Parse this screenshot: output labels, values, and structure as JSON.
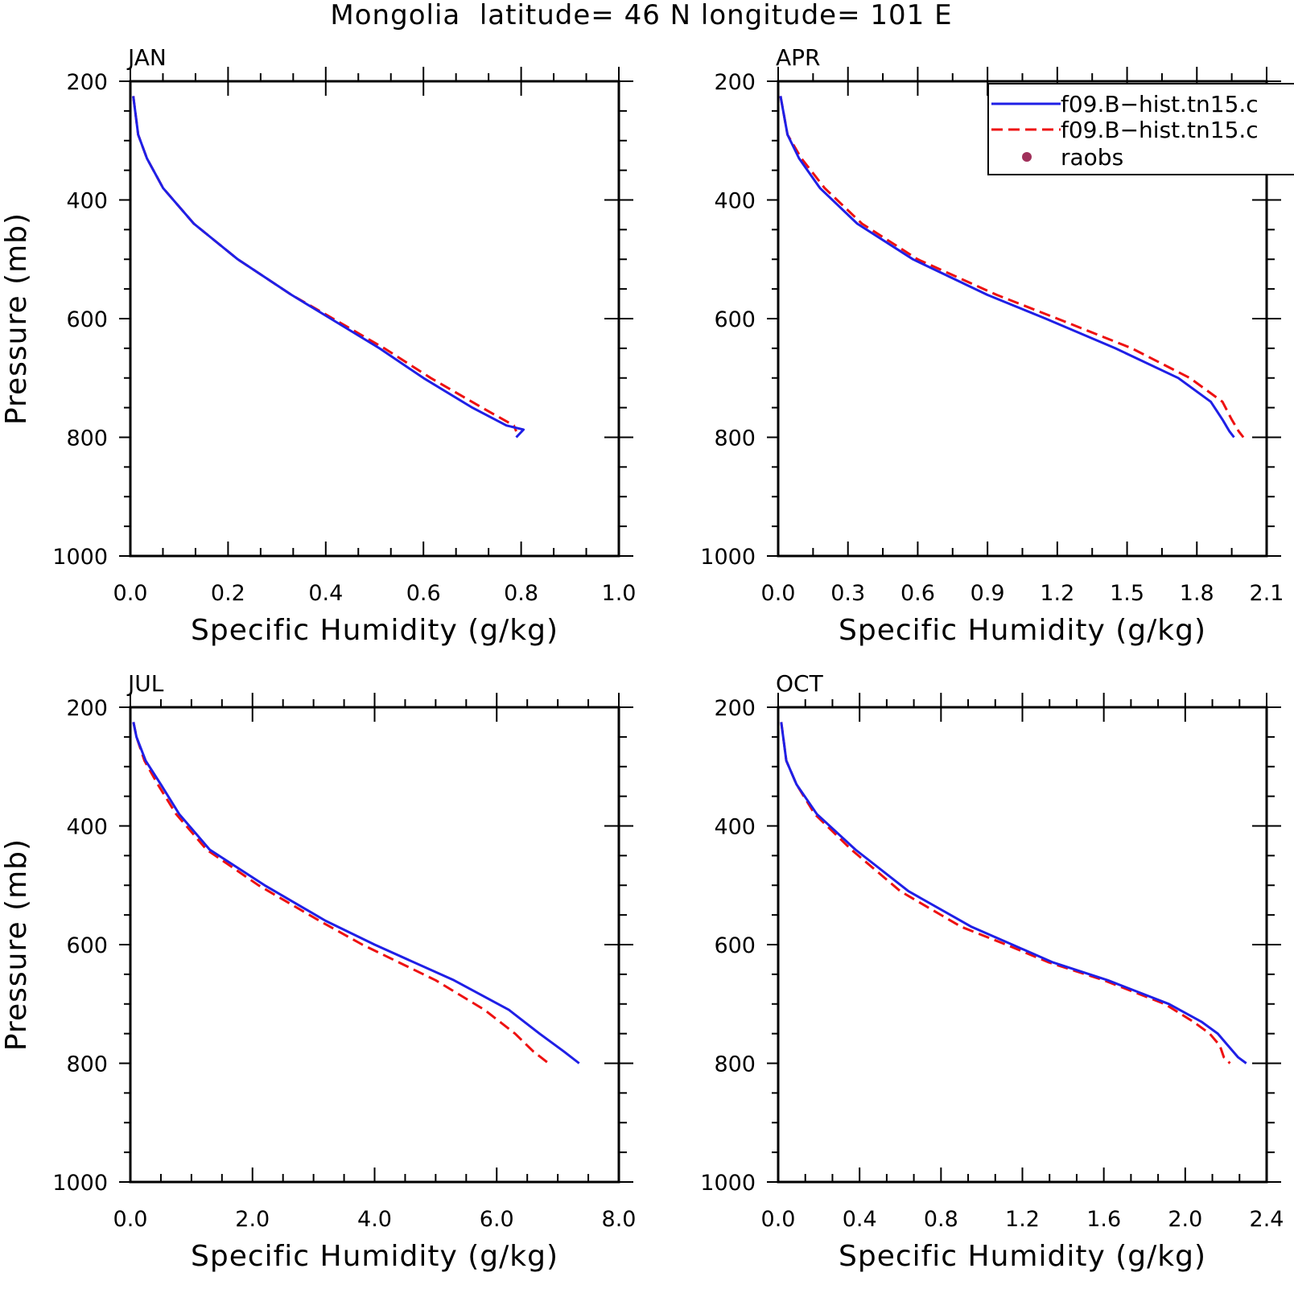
{
  "title": "Mongolia  latitude= 46 N longitude= 101 E",
  "colors": {
    "series_blue": "#1f1fe6",
    "series_red": "#ee1111",
    "raobs": "#a0305a",
    "axis": "#000000"
  },
  "legend": {
    "placement": "top-right of APR panel",
    "entries": [
      {
        "label": "f09.B−hist.tn15.c",
        "style": "solid",
        "color": "#1f1fe6"
      },
      {
        "label": "f09.B−hist.tn15.c",
        "style": "dashed",
        "color": "#ee1111"
      },
      {
        "label": "raobs",
        "style": "dot",
        "color": "#a0305a"
      }
    ]
  },
  "chart_data": [
    {
      "type": "line",
      "panel": "JAN",
      "xlabel": "Specific Humidity (g/kg)",
      "ylabel": "Pressure (mb)",
      "xlim": [
        0.0,
        1.0
      ],
      "ylim": [
        1000,
        200
      ],
      "xticks": [
        "0.0",
        "0.2",
        "0.4",
        "0.6",
        "0.8",
        "1.0"
      ],
      "yticks": [
        "200",
        "400",
        "600",
        "800",
        "1000"
      ],
      "series": [
        {
          "color": "#1f1fe6",
          "dash": false,
          "p": [
            225,
            290,
            330,
            380,
            440,
            500,
            560,
            600,
            650,
            700,
            750,
            780,
            787,
            800
          ],
          "q": [
            0.006,
            0.016,
            0.034,
            0.067,
            0.13,
            0.22,
            0.33,
            0.41,
            0.51,
            0.6,
            0.7,
            0.77,
            0.805,
            0.79
          ]
        },
        {
          "color": "#ee1111",
          "dash": true,
          "p": [
            225,
            290,
            330,
            380,
            440,
            500,
            560,
            600,
            650,
            700,
            750,
            780,
            790
          ],
          "q": [
            0.006,
            0.016,
            0.034,
            0.067,
            0.13,
            0.22,
            0.33,
            0.415,
            0.52,
            0.615,
            0.72,
            0.785,
            0.79
          ]
        }
      ]
    },
    {
      "type": "line",
      "panel": "APR",
      "xlabel": "Specific Humidity (g/kg)",
      "ylabel": "",
      "xlim": [
        0.0,
        2.1
      ],
      "ylim": [
        1000,
        200
      ],
      "xticks": [
        "0.0",
        "0.3",
        "0.6",
        "0.9",
        "1.2",
        "1.5",
        "1.8",
        "2.1"
      ],
      "yticks": [
        "200",
        "400",
        "600",
        "800",
        "1000"
      ],
      "series": [
        {
          "color": "#1f1fe6",
          "dash": false,
          "p": [
            225,
            290,
            330,
            380,
            440,
            500,
            560,
            600,
            650,
            700,
            740,
            770,
            790,
            800
          ],
          "q": [
            0.01,
            0.04,
            0.09,
            0.18,
            0.34,
            0.58,
            0.9,
            1.15,
            1.45,
            1.72,
            1.86,
            1.91,
            1.94,
            1.96
          ]
        },
        {
          "color": "#ee1111",
          "dash": true,
          "p": [
            225,
            290,
            330,
            380,
            440,
            500,
            560,
            600,
            650,
            700,
            740,
            770,
            790,
            800
          ],
          "q": [
            0.01,
            0.04,
            0.1,
            0.2,
            0.36,
            0.6,
            0.94,
            1.2,
            1.52,
            1.77,
            1.91,
            1.95,
            1.98,
            2.0
          ]
        }
      ]
    },
    {
      "type": "line",
      "panel": "JUL",
      "xlabel": "Specific Humidity (g/kg)",
      "ylabel": "Pressure (mb)",
      "xlim": [
        0.0,
        8.0
      ],
      "ylim": [
        1000,
        200
      ],
      "xticks": [
        "0.0",
        "2.0",
        "4.0",
        "6.0",
        "8.0"
      ],
      "yticks": [
        "200",
        "400",
        "600",
        "800",
        "1000"
      ],
      "series": [
        {
          "color": "#1f1fe6",
          "dash": false,
          "p": [
            225,
            250,
            290,
            330,
            380,
            440,
            500,
            560,
            600,
            660,
            710,
            750,
            780,
            800
          ],
          "q": [
            0.05,
            0.1,
            0.25,
            0.5,
            0.8,
            1.3,
            2.2,
            3.2,
            4.0,
            5.3,
            6.2,
            6.7,
            7.1,
            7.35
          ]
        },
        {
          "color": "#ee1111",
          "dash": true,
          "p": [
            225,
            250,
            290,
            330,
            380,
            440,
            500,
            560,
            600,
            660,
            710,
            750,
            780,
            800
          ],
          "q": [
            0.05,
            0.1,
            0.23,
            0.45,
            0.75,
            1.25,
            2.1,
            3.1,
            3.8,
            5.0,
            5.8,
            6.3,
            6.6,
            6.85
          ]
        }
      ]
    },
    {
      "type": "line",
      "panel": "OCT",
      "xlabel": "Specific Humidity (g/kg)",
      "ylabel": "",
      "xlim": [
        0.0,
        2.4
      ],
      "ylim": [
        1000,
        200
      ],
      "xticks": [
        "0.0",
        "0.4",
        "0.8",
        "1.2",
        "1.6",
        "2.0",
        "2.4"
      ],
      "yticks": [
        "200",
        "400",
        "600",
        "800",
        "1000"
      ],
      "series": [
        {
          "color": "#1f1fe6",
          "dash": false,
          "p": [
            225,
            290,
            330,
            380,
            440,
            510,
            570,
            600,
            630,
            660,
            700,
            730,
            750,
            770,
            790,
            800
          ],
          "q": [
            0.015,
            0.04,
            0.09,
            0.19,
            0.38,
            0.64,
            0.95,
            1.15,
            1.35,
            1.62,
            1.92,
            2.08,
            2.16,
            2.21,
            2.26,
            2.3
          ]
        },
        {
          "color": "#ee1111",
          "dash": true,
          "p": [
            225,
            290,
            330,
            380,
            440,
            510,
            570,
            600,
            630,
            660,
            700,
            730,
            750,
            770,
            790,
            800
          ],
          "q": [
            0.015,
            0.04,
            0.09,
            0.18,
            0.36,
            0.6,
            0.9,
            1.12,
            1.33,
            1.6,
            1.9,
            2.04,
            2.12,
            2.17,
            2.19,
            2.22
          ]
        }
      ]
    }
  ]
}
